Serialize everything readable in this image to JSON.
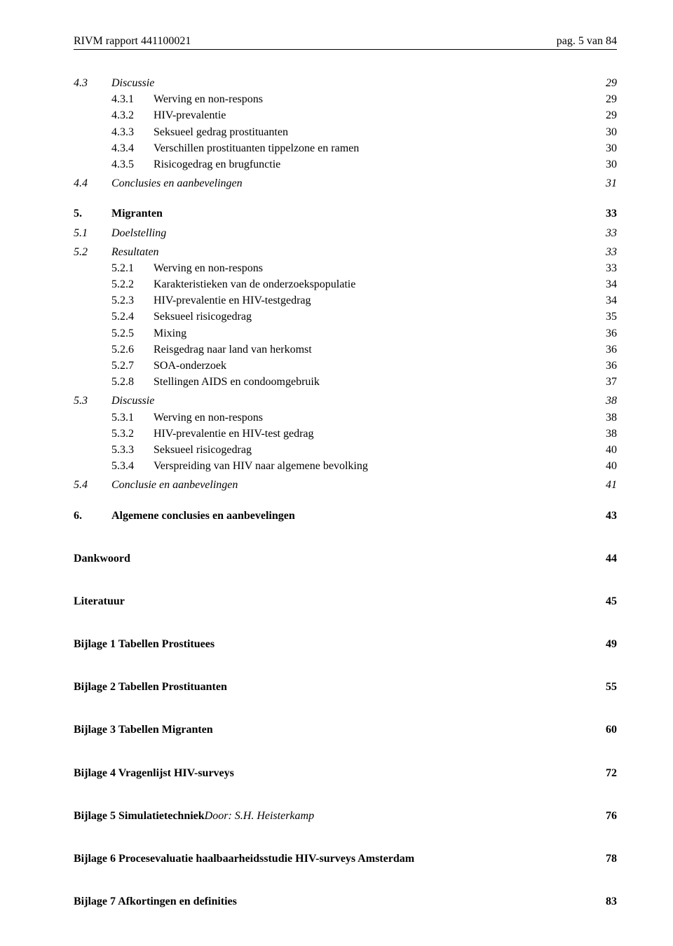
{
  "header": {
    "left": "RIVM rapport  441100021",
    "right": "pag. 5 van 84"
  },
  "toc": [
    {
      "lvl": 2,
      "num": "4.3",
      "title": "Discussie",
      "page": "29",
      "before": ""
    },
    {
      "lvl": 3,
      "num": "4.3.1",
      "title": "Werving en non-respons",
      "page": "29"
    },
    {
      "lvl": 3,
      "num": "4.3.2",
      "title": "HIV-prevalentie",
      "page": "29"
    },
    {
      "lvl": 3,
      "num": "4.3.3",
      "title": "Seksueel gedrag prostituanten",
      "page": "30"
    },
    {
      "lvl": 3,
      "num": "4.3.4",
      "title": "Verschillen prostituanten tippelzone en ramen",
      "page": "30"
    },
    {
      "lvl": 3,
      "num": "4.3.5",
      "title": "Risicogedrag en brugfunctie",
      "page": "30"
    },
    {
      "lvl": 2,
      "num": "4.4",
      "title": "Conclusies en aanbevelingen",
      "page": "31",
      "before": "sm"
    },
    {
      "lvl": 1,
      "num": "5.",
      "title": "Migranten",
      "page": "33",
      "before": "md"
    },
    {
      "lvl": 2,
      "num": "5.1",
      "title": "Doelstelling",
      "page": "33",
      "before": "sm"
    },
    {
      "lvl": 2,
      "num": "5.2",
      "title": "Resultaten",
      "page": "33",
      "before": "sm"
    },
    {
      "lvl": 3,
      "num": "5.2.1",
      "title": "Werving en non-respons",
      "page": "33"
    },
    {
      "lvl": 3,
      "num": "5.2.2",
      "title": "Karakteristieken van de onderzoekspopulatie",
      "page": "34"
    },
    {
      "lvl": 3,
      "num": "5.2.3",
      "title": "HIV-prevalentie en HIV-testgedrag",
      "page": "34"
    },
    {
      "lvl": 3,
      "num": "5.2.4",
      "title": "Seksueel risicogedrag",
      "page": "35"
    },
    {
      "lvl": 3,
      "num": "5.2.5",
      "title": "Mixing",
      "page": "36"
    },
    {
      "lvl": 3,
      "num": "5.2.6",
      "title": "Reisgedrag naar land van herkomst",
      "page": "36"
    },
    {
      "lvl": 3,
      "num": "5.2.7",
      "title": "SOA-onderzoek",
      "page": "36"
    },
    {
      "lvl": 3,
      "num": "5.2.8",
      "title": "Stellingen AIDS en condoomgebruik",
      "page": "37"
    },
    {
      "lvl": 2,
      "num": "5.3",
      "title": "Discussie",
      "page": "38",
      "before": "sm"
    },
    {
      "lvl": 3,
      "num": "5.3.1",
      "title": "Werving en non-respons",
      "page": "38"
    },
    {
      "lvl": 3,
      "num": "5.3.2",
      "title": "HIV-prevalentie en HIV-test gedrag",
      "page": "38"
    },
    {
      "lvl": 3,
      "num": "5.3.3",
      "title": "Seksueel risicogedrag",
      "page": "40"
    },
    {
      "lvl": 3,
      "num": "5.3.4",
      "title": "Verspreiding van HIV naar algemene bevolking",
      "page": "40"
    },
    {
      "lvl": 2,
      "num": "5.4",
      "title": "Conclusie en aanbevelingen",
      "page": "41",
      "before": "sm"
    },
    {
      "lvl": 1,
      "num": "6.",
      "title": "Algemene conclusies en aanbevelingen",
      "page": "43",
      "before": "md"
    },
    {
      "lvl": 0,
      "title": "Dankwoord",
      "page": "44",
      "before": "lg",
      "bold": true
    },
    {
      "lvl": 0,
      "title": "Literatuur",
      "page": "45",
      "before": "lg",
      "bold": true
    },
    {
      "lvl": 0,
      "title": "Bijlage 1 Tabellen Prostituees",
      "page": "49",
      "before": "lg",
      "bold": true
    },
    {
      "lvl": 0,
      "title": "Bijlage 2 Tabellen Prostituanten",
      "page": "55",
      "before": "lg",
      "bold": true
    },
    {
      "lvl": 0,
      "title": "Bijlage 3 Tabellen Migranten",
      "page": "60",
      "before": "lg",
      "bold": true
    },
    {
      "lvl": 0,
      "title": "Bijlage 4 Vragenlijst HIV-surveys",
      "page": "72",
      "before": "lg",
      "bold": true
    },
    {
      "lvl": 0,
      "title": "Bijlage 5 Simulatietechniek",
      "byline": "  Door: S.H. Heisterkamp",
      "page": "76",
      "before": "lg",
      "bold": true
    },
    {
      "lvl": 0,
      "title": "Bijlage 6 Procesevaluatie haalbaarheidsstudie HIV-surveys Amsterdam",
      "page": "78",
      "before": "lg",
      "bold": true
    },
    {
      "lvl": 0,
      "title": "Bijlage 7 Afkortingen en definities",
      "page": "83",
      "before": "lg",
      "bold": true
    }
  ]
}
